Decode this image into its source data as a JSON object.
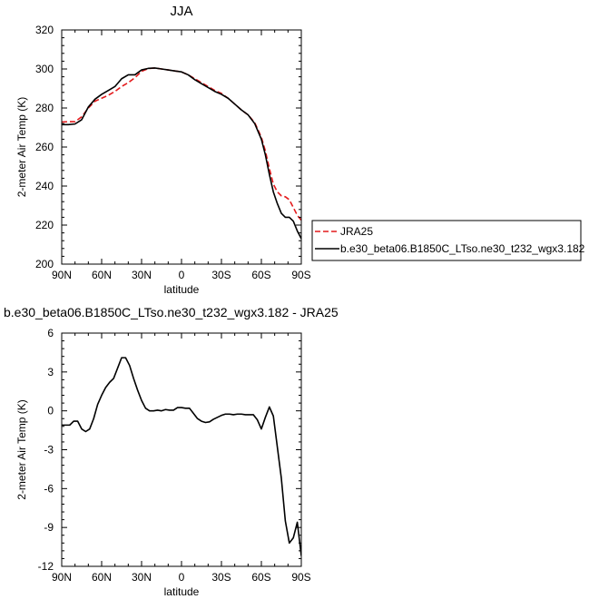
{
  "chart_data": [
    {
      "type": "line",
      "title": "JJA",
      "xlabel": "latitude",
      "ylabel": "2-meter Air Temp (K)",
      "xlim": [
        90,
        -90
      ],
      "ylim": [
        200,
        320
      ],
      "x_tick_values": [
        90,
        60,
        30,
        0,
        -30,
        -60,
        -90
      ],
      "x_tick_labels": [
        "90N",
        "60N",
        "30N",
        "0",
        "30S",
        "60S",
        "90S"
      ],
      "y_tick_values": [
        200,
        220,
        240,
        260,
        280,
        300,
        320
      ],
      "y_tick_labels": [
        "200",
        "220",
        "240",
        "260",
        "280",
        "300",
        "320"
      ],
      "grid": false,
      "legend_position": "outside-right",
      "series": [
        {
          "name": "JRA25",
          "color": "#e41a1c",
          "dash": "dashed",
          "x": [
            90,
            85,
            80,
            75,
            70,
            65,
            60,
            55,
            50,
            45,
            40,
            35,
            30,
            25,
            20,
            15,
            10,
            5,
            0,
            -5,
            -10,
            -15,
            -20,
            -25,
            -30,
            -35,
            -40,
            -45,
            -50,
            -55,
            -60,
            -63,
            -66,
            -69,
            -72,
            -75,
            -78,
            -81,
            -84,
            -87,
            -90
          ],
          "y": [
            272.8,
            273,
            273,
            275.5,
            280,
            283.5,
            285,
            286.5,
            288.5,
            291,
            293,
            295.5,
            298.8,
            300.2,
            300.5,
            300,
            299.5,
            299,
            298.5,
            297,
            295,
            293,
            291,
            289,
            287.5,
            285,
            282,
            279,
            276.5,
            272.5,
            265,
            258,
            249,
            241,
            237,
            235,
            234.5,
            233,
            229,
            225,
            222.5
          ]
        },
        {
          "name": "b.e30_beta06.B1850C_LTso.ne30_t232_wgx3.182",
          "color": "#000000",
          "dash": "solid",
          "x": [
            90,
            85,
            80,
            75,
            70,
            65,
            60,
            55,
            50,
            45,
            40,
            35,
            30,
            25,
            20,
            15,
            10,
            5,
            0,
            -5,
            -10,
            -15,
            -20,
            -25,
            -30,
            -35,
            -40,
            -45,
            -50,
            -55,
            -60,
            -63,
            -66,
            -69,
            -72,
            -75,
            -78,
            -81,
            -84,
            -87,
            -90
          ],
          "y": [
            271.5,
            271.5,
            271.8,
            274,
            280.5,
            284.5,
            287,
            289,
            291,
            295,
            297,
            297,
            299.5,
            300.3,
            300.5,
            300,
            299.5,
            299,
            298.5,
            297,
            294.5,
            292.5,
            290.5,
            288.5,
            287,
            285,
            282,
            279,
            276.5,
            272,
            264,
            256,
            246,
            237,
            231,
            226,
            224,
            224,
            222,
            217,
            213
          ]
        }
      ]
    },
    {
      "type": "line",
      "title": "b.e30_beta06.B1850C_LTso.ne30_t232_wgx3.182 - JRA25",
      "xlabel": "latitude",
      "ylabel": "2-meter Air Temp (K)",
      "xlim": [
        90,
        -90
      ],
      "ylim": [
        -12,
        6
      ],
      "x_tick_values": [
        90,
        60,
        30,
        0,
        -30,
        -60,
        -90
      ],
      "x_tick_labels": [
        "90N",
        "60N",
        "30N",
        "0",
        "30S",
        "60S",
        "90S"
      ],
      "y_tick_values": [
        -12,
        -9,
        -6,
        -3,
        0,
        3,
        6
      ],
      "y_tick_labels": [
        "-12",
        "-9",
        "-6",
        "-3",
        "0",
        "3",
        "6"
      ],
      "grid": false,
      "series": [
        {
          "color": "#000000",
          "dash": "solid",
          "x": [
            90,
            87,
            84,
            81,
            78,
            75,
            72,
            69,
            66,
            63,
            60,
            57,
            54,
            51,
            48,
            45,
            42,
            39,
            36,
            33,
            30,
            27,
            24,
            21,
            18,
            15,
            12,
            9,
            6,
            3,
            0,
            -3,
            -6,
            -9,
            -12,
            -15,
            -18,
            -21,
            -24,
            -27,
            -30,
            -33,
            -36,
            -39,
            -42,
            -45,
            -48,
            -51,
            -54,
            -57,
            -60,
            -63,
            -66,
            -69,
            -72,
            -75,
            -78,
            -81,
            -84,
            -87,
            -90
          ],
          "y": [
            -1.1,
            -1.1,
            -1.1,
            -0.8,
            -0.8,
            -1.4,
            -1.6,
            -1.4,
            -0.6,
            0.5,
            1.2,
            1.8,
            2.2,
            2.5,
            3.3,
            4.1,
            4.1,
            3.5,
            2.5,
            1.6,
            0.8,
            0.2,
            0,
            0,
            0.05,
            0,
            0.1,
            0.05,
            0.05,
            0.25,
            0.25,
            0.2,
            0.2,
            -0.2,
            -0.6,
            -0.8,
            -0.9,
            -0.85,
            -0.65,
            -0.5,
            -0.35,
            -0.25,
            -0.25,
            -0.3,
            -0.25,
            -0.25,
            -0.3,
            -0.3,
            -0.3,
            -0.7,
            -1.4,
            -0.5,
            0.3,
            -0.4,
            -2.8,
            -5.2,
            -8.5,
            -10.2,
            -9.8,
            -8.6,
            -11.2
          ]
        }
      ]
    }
  ]
}
